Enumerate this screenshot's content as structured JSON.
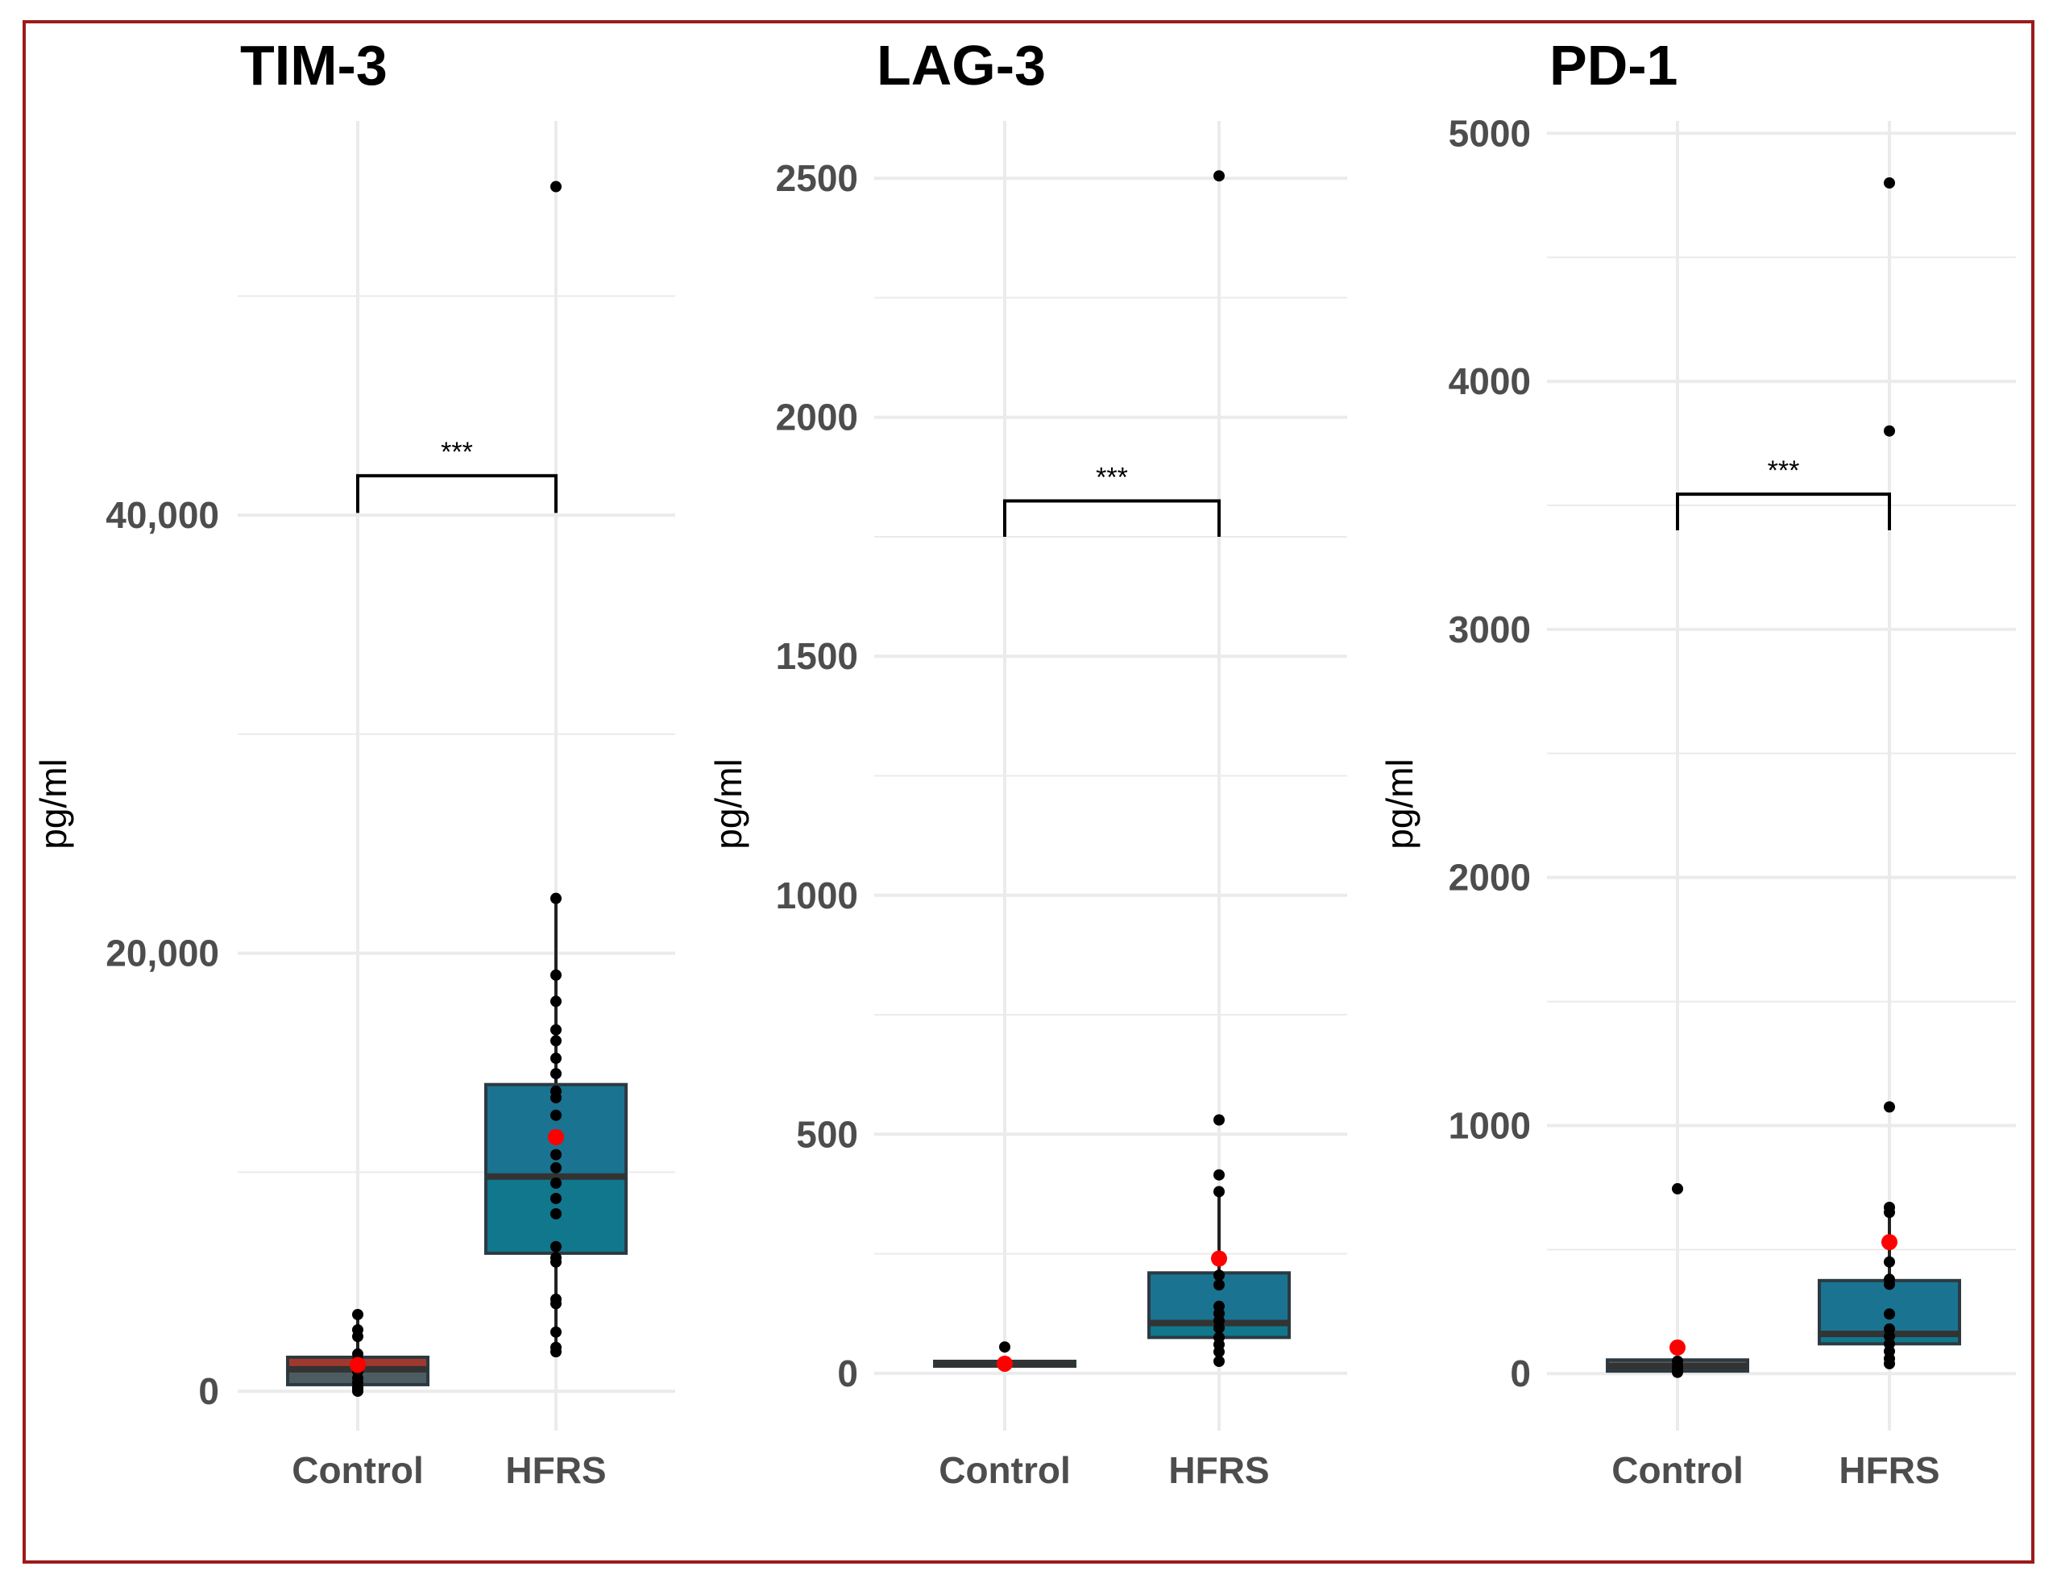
{
  "chart_data": [
    {
      "type": "box",
      "title": "TIM-3",
      "ylabel": "pg/ml",
      "ylim": [
        -1800,
        58000
      ],
      "yticks": [
        0,
        20000,
        40000
      ],
      "ytick_labels": [
        "0",
        "20,000",
        "40,000"
      ],
      "minor_yticks": [
        10000,
        30000,
        50000
      ],
      "categories": [
        "Control",
        "HFRS"
      ],
      "groups": [
        {
          "name": "Control",
          "color": "#a0392d",
          "box": {
            "q1": 300,
            "median": 1000,
            "q3": 1550,
            "whisker_low": 0,
            "whisker_high": 3500
          },
          "mean": 1200,
          "points": [
            3500,
            2800,
            2500,
            1700,
            1400,
            1200,
            900,
            600,
            400,
            200,
            100,
            0
          ]
        },
        {
          "name": "HFRS",
          "color": "#1a7391",
          "box": {
            "q1": 6300,
            "median": 9800,
            "q3": 14000,
            "whisker_low": 1800,
            "whisker_high": 22500
          },
          "mean": 11600,
          "points": [
            55000,
            22500,
            19000,
            17800,
            16500,
            16000,
            15200,
            14500,
            13700,
            13400,
            12600,
            11600,
            10800,
            10200,
            9500,
            8800,
            8100,
            6600,
            6100,
            5900,
            4200,
            4000,
            2700,
            2000,
            1800
          ]
        }
      ],
      "significance": {
        "label": "***",
        "y_bracket": 41800,
        "y_legs": 40100
      }
    },
    {
      "type": "box",
      "title": "LAG-3",
      "ylabel": "pg/ml",
      "ylim": [
        -120,
        2620
      ],
      "yticks": [
        0,
        500,
        1000,
        1500,
        2000,
        2500
      ],
      "ytick_labels": [
        "0",
        "500",
        "1000",
        "1500",
        "2000",
        "2500"
      ],
      "minor_yticks": [
        250,
        750,
        1250,
        1750,
        2250
      ],
      "categories": [
        "Control",
        "HFRS"
      ],
      "groups": [
        {
          "name": "Control",
          "color": "#555555",
          "box": {
            "q1": 15,
            "median": 20,
            "q3": 25,
            "whisker_low": 10,
            "whisker_high": 30
          },
          "mean": 20,
          "points": [
            55,
            22,
            18,
            15
          ]
        },
        {
          "name": "HFRS",
          "color": "#1a7391",
          "box": {
            "q1": 75,
            "median": 105,
            "q3": 210,
            "whisker_low": 25,
            "whisker_high": 380
          },
          "mean": 240,
          "points": [
            2505,
            530,
            415,
            380,
            205,
            185,
            140,
            125,
            110,
            95,
            75,
            60,
            45,
            25
          ]
        }
      ],
      "significance": {
        "label": "***",
        "y_bracket": 1825,
        "y_legs": 1750
      }
    },
    {
      "type": "box",
      "title": "PD-1",
      "ylabel": "pg/ml",
      "ylim": [
        -230,
        5050
      ],
      "yticks": [
        0,
        1000,
        2000,
        3000,
        4000,
        5000
      ],
      "ytick_labels": [
        "0",
        "1000",
        "2000",
        "3000",
        "4000",
        "5000"
      ],
      "minor_yticks": [
        500,
        1500,
        2500,
        3500,
        4500
      ],
      "categories": [
        "Control",
        "HFRS"
      ],
      "groups": [
        {
          "name": "Control",
          "color": "#555555",
          "box": {
            "q1": 10,
            "median": 30,
            "q3": 55,
            "whisker_low": 0,
            "whisker_high": 55
          },
          "mean": 105,
          "points": [
            745,
            50,
            30,
            15,
            5
          ]
        },
        {
          "name": "HFRS",
          "color": "#1a7391",
          "box": {
            "q1": 120,
            "median": 160,
            "q3": 375,
            "whisker_low": 40,
            "whisker_high": 670
          },
          "mean": 530,
          "points": [
            4800,
            3800,
            1075,
            670,
            650,
            450,
            380,
            360,
            240,
            180,
            150,
            120,
            90,
            60,
            40
          ]
        }
      ],
      "significance": {
        "label": "***",
        "y_bracket": 3545,
        "y_legs": 3400
      }
    }
  ]
}
